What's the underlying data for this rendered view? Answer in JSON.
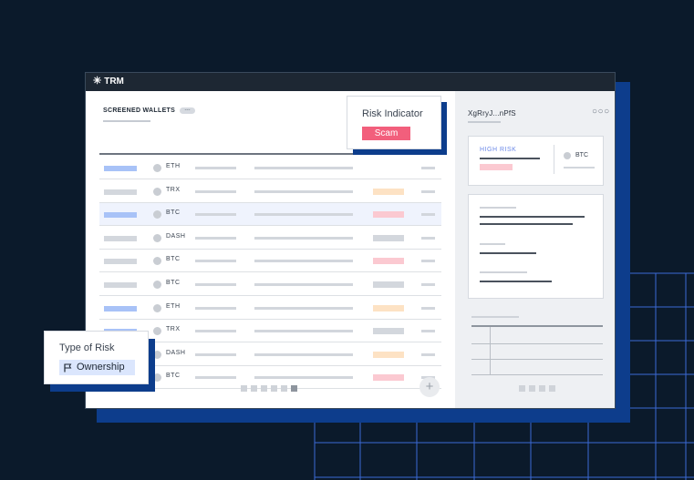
{
  "app": {
    "logo": "TRM"
  },
  "screened": {
    "title": "SCREENED WALLETS",
    "badge": "---",
    "rows": [
      {
        "symbol": "ETH",
        "tag_color": "#a8c2f7",
        "status_color": "#ffffff",
        "highlight": false
      },
      {
        "symbol": "TRX",
        "tag_color": "#d3d7dd",
        "status_color": "#fde2c4",
        "highlight": false
      },
      {
        "symbol": "BTC",
        "tag_color": "#a8c2f7",
        "status_color": "#fbc9d1",
        "highlight": true
      },
      {
        "symbol": "DASH",
        "tag_color": "#d3d7dd",
        "status_color": "#d3d7dd",
        "highlight": false
      },
      {
        "symbol": "BTC",
        "tag_color": "#d3d7dd",
        "status_color": "#fbc9d1",
        "highlight": false
      },
      {
        "symbol": "BTC",
        "tag_color": "#d3d7dd",
        "status_color": "#d3d7dd",
        "highlight": false
      },
      {
        "symbol": "ETH",
        "tag_color": "#a8c2f7",
        "status_color": "#fde2c4",
        "highlight": false
      },
      {
        "symbol": "TRX",
        "tag_color": "#a8c2f7",
        "status_color": "#d3d7dd",
        "highlight": false
      },
      {
        "symbol": "DASH",
        "tag_color": "#d3d7dd",
        "status_color": "#fde2c4",
        "highlight": false
      },
      {
        "symbol": "BTC",
        "tag_color": "#d3d7dd",
        "status_color": "#fbc9d1",
        "highlight": false
      }
    ],
    "pager_active_index": 5,
    "add_icon": "plus-icon"
  },
  "wallet": {
    "id": "XgRryJ...nPfS",
    "risk_label": "HIGH RISK",
    "asset": "BTC",
    "more_icon": "ellipsis-icon"
  },
  "risk_indicator": {
    "title": "Risk Indicator",
    "value": "Scam"
  },
  "type_of_risk": {
    "title": "Type of Risk",
    "value": "Ownership",
    "icon": "flag-icon"
  },
  "colors": {
    "background": "#0b1a2b",
    "brand_blue": "#0d3d8c",
    "scam": "#f25f7c",
    "high_risk": "#6d8ae8"
  }
}
